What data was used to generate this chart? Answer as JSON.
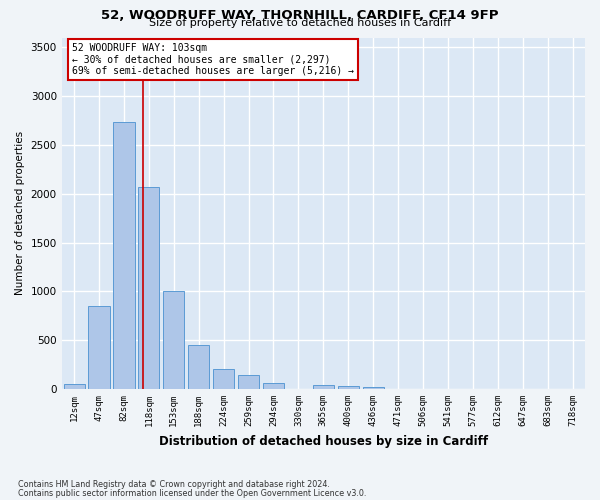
{
  "title1": "52, WOODRUFF WAY, THORNHILL, CARDIFF, CF14 9FP",
  "title2": "Size of property relative to detached houses in Cardiff",
  "xlabel": "Distribution of detached houses by size in Cardiff",
  "ylabel": "Number of detached properties",
  "categories": [
    "12sqm",
    "47sqm",
    "82sqm",
    "118sqm",
    "153sqm",
    "188sqm",
    "224sqm",
    "259sqm",
    "294sqm",
    "330sqm",
    "365sqm",
    "400sqm",
    "436sqm",
    "471sqm",
    "506sqm",
    "541sqm",
    "577sqm",
    "612sqm",
    "647sqm",
    "683sqm",
    "718sqm"
  ],
  "values": [
    55,
    855,
    2730,
    2070,
    1005,
    455,
    205,
    145,
    60,
    0,
    45,
    30,
    20,
    0,
    0,
    0,
    0,
    0,
    0,
    0,
    0
  ],
  "bar_color": "#aec6e8",
  "bar_edge_color": "#5b9bd5",
  "bg_color": "#dce8f5",
  "grid_color": "#ffffff",
  "annotation_text_line1": "52 WOODRUFF WAY: 103sqm",
  "annotation_text_line2": "← 30% of detached houses are smaller (2,297)",
  "annotation_text_line3": "69% of semi-detached houses are larger (5,216) →",
  "annotation_box_color": "#ffffff",
  "annotation_border_color": "#cc0000",
  "vline_x_index": 2.78,
  "ylim": [
    0,
    3600
  ],
  "yticks": [
    0,
    500,
    1000,
    1500,
    2000,
    2500,
    3000,
    3500
  ],
  "footnote1": "Contains HM Land Registry data © Crown copyright and database right 2024.",
  "footnote2": "Contains public sector information licensed under the Open Government Licence v3.0."
}
